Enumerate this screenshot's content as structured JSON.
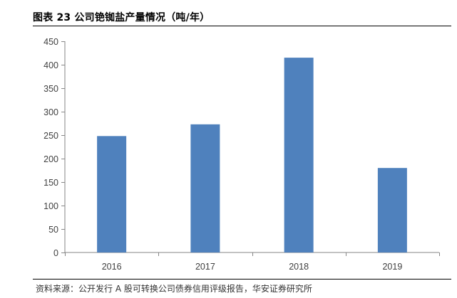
{
  "header": {
    "title": "图表 23 公司铯铷盐产量情况（吨/年）"
  },
  "footer": {
    "source": "资料来源：公开发行 A 股可转换公司债券信用评级报告，华安证券研究所"
  },
  "chart_data": {
    "type": "bar",
    "title": "",
    "xlabel": "",
    "ylabel": "",
    "categories": [
      "2016",
      "2017",
      "2018",
      "2019"
    ],
    "values": [
      248,
      273,
      415,
      180
    ],
    "ylim": [
      0,
      450
    ],
    "yticks": [
      0,
      50,
      100,
      150,
      200,
      250,
      300,
      350,
      400,
      450
    ],
    "grid": false,
    "legend": "none",
    "bar_color": "#4f81bd",
    "axis_color": "#868686",
    "text_color": "#404040"
  }
}
